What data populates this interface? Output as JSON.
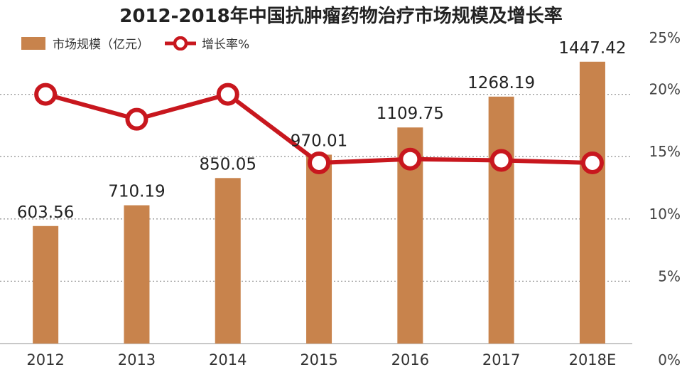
{
  "title": "2012-2018年中国抗肿瘤药物治疗市场规模及增长率",
  "legend": {
    "bar_label": "市场规模（亿元）",
    "line_label": "增长率%"
  },
  "colors": {
    "bar": "#C8834C",
    "line": "#C8171E",
    "grid": "#9a9a9a"
  },
  "chart_data": {
    "type": "bar",
    "title": "2012-2018年中国抗肿瘤药物治疗市场规模及增长率",
    "categories": [
      "2012",
      "2013",
      "2014",
      "2015",
      "2016",
      "2017",
      "2018E"
    ],
    "series": [
      {
        "name": "市场规模（亿元）",
        "type": "bar",
        "axis": "left",
        "values": [
          603.56,
          710.19,
          850.05,
          970.01,
          1109.75,
          1268.19,
          1447.42
        ],
        "value_labels": [
          "603.56",
          "710.19",
          "850.05",
          "970.01",
          "1109.75",
          "1268.19",
          "1447.42"
        ]
      },
      {
        "name": "增长率%",
        "type": "line",
        "axis": "right",
        "values": [
          20.0,
          18.0,
          20.0,
          14.5,
          14.8,
          14.7,
          14.5
        ]
      }
    ],
    "y_left_lim": [
      0,
      1600
    ],
    "y_right_lim": [
      0,
      25
    ],
    "y_right_ticks": [
      "0%",
      "5%",
      "10%",
      "15%",
      "20%",
      "25%"
    ],
    "y_right_tick_values": [
      0,
      5,
      10,
      15,
      20,
      25
    ],
    "grid": true,
    "legend_position": "top-left"
  }
}
